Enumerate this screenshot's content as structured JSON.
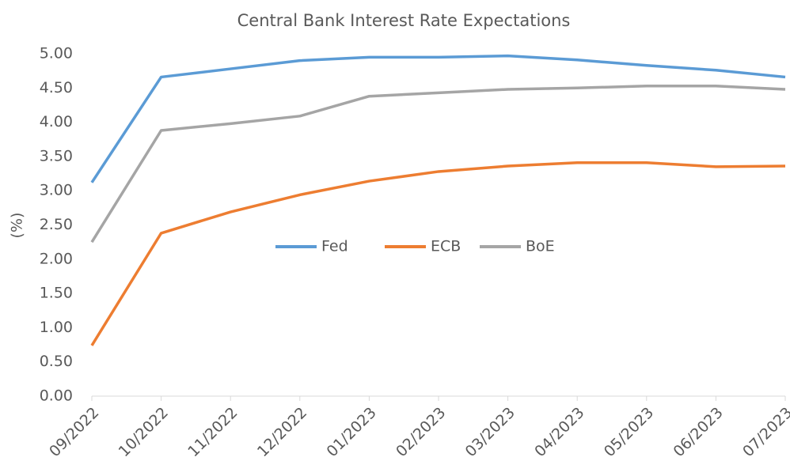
{
  "chart_data": {
    "type": "line",
    "title": "Central Bank Interest Rate Expectations",
    "y_label": "(%)",
    "categories": [
      "09/2022",
      "10/2022",
      "11/2022",
      "12/2022",
      "01/2023",
      "02/2023",
      "03/2023",
      "04/2023",
      "05/2023",
      "06/2023",
      "07/2023"
    ],
    "series": [
      {
        "name": "Fed",
        "color": "#5b9bd5",
        "values": [
          3.12,
          4.66,
          4.78,
          4.9,
          4.95,
          4.95,
          4.97,
          4.91,
          4.83,
          4.76,
          4.66
        ]
      },
      {
        "name": "ECB",
        "color": "#ed7d31",
        "values": [
          0.74,
          2.38,
          2.69,
          2.94,
          3.14,
          3.28,
          3.36,
          3.41,
          3.41,
          3.35,
          3.36
        ]
      },
      {
        "name": "BoE",
        "color": "#a5a5a5",
        "values": [
          2.25,
          3.88,
          3.98,
          4.09,
          4.38,
          4.43,
          4.48,
          4.5,
          4.53,
          4.53,
          4.48
        ]
      }
    ],
    "ylim": [
      0,
      5
    ],
    "yticks": [
      {
        "value": 0,
        "label": "0.00"
      },
      {
        "value": 0.5,
        "label": "0.50"
      },
      {
        "value": 1,
        "label": "1.00"
      },
      {
        "value": 1.5,
        "label": "1.50"
      },
      {
        "value": 2,
        "label": "2.00"
      },
      {
        "value": 2.5,
        "label": "2.50"
      },
      {
        "value": 3,
        "label": "3.00"
      },
      {
        "value": 3.5,
        "label": "3.50"
      },
      {
        "value": 4,
        "label": "4.00"
      },
      {
        "value": 4.5,
        "label": "4.50"
      },
      {
        "value": 5,
        "label": "5.00"
      }
    ],
    "grid": false,
    "legend": "center"
  }
}
